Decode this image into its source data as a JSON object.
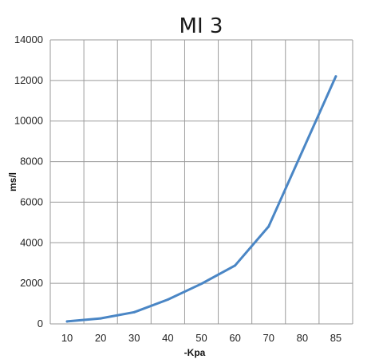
{
  "chart_data": {
    "type": "line",
    "title": "MI 3",
    "xlabel": "-Kpa",
    "ylabel": "ms/l",
    "categories": [
      "10",
      "20",
      "30",
      "40",
      "50",
      "60",
      "70",
      "80",
      "85"
    ],
    "values": [
      120,
      270,
      580,
      1200,
      1980,
      2880,
      4800,
      8500,
      12200
    ],
    "ylim": [
      0,
      14000
    ],
    "yticks": [
      0,
      2000,
      4000,
      6000,
      8000,
      10000,
      12000,
      14000
    ],
    "grid": true,
    "legend": "none",
    "line_color": "#4a86c5",
    "grid_color": "#9a9a9a"
  }
}
